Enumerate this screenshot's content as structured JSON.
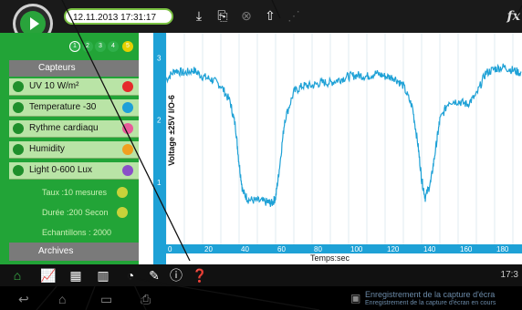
{
  "header": {
    "timestamp": "12.11.2013 17:31:17",
    "channels": [
      "1",
      "2",
      "3",
      "4",
      "5"
    ],
    "fx_label": "fx"
  },
  "sidebar": {
    "sensors_header": "Capteurs",
    "sensors": [
      {
        "label": "UV 10 W/m²",
        "color": "#e52b2b"
      },
      {
        "label": "Temperature -30",
        "color": "#1fa0d8"
      },
      {
        "label": "Rythme cardiaqu",
        "color": "#e85a9a"
      },
      {
        "label": "Humidity",
        "color": "#f0a020"
      },
      {
        "label": "Light 0-600 Lux",
        "color": "#8a4fc8"
      }
    ],
    "info_rows": [
      "Taux :10 mesures",
      "Durée :200 Secon",
      "Echantillons : 2000"
    ],
    "archives_label": "Archives"
  },
  "chart_data": {
    "type": "line",
    "ylabel": "Voltage ±25V I/O-6",
    "xlabel": "Temps:sec",
    "x_ticks": [
      "0",
      "20",
      "40",
      "60",
      "80",
      "100",
      "120",
      "140",
      "160",
      "180"
    ],
    "y_ticks": [
      "3",
      "2",
      "1"
    ],
    "xlim": [
      0,
      195
    ],
    "ylim": [
      0,
      3.4
    ],
    "line_color": "#1ea1d6",
    "series": [
      {
        "x": [
          0,
          5,
          10,
          15,
          20,
          25,
          30,
          35,
          38,
          40,
          42,
          45,
          50,
          55,
          58,
          60,
          62,
          65,
          70,
          75,
          80,
          85,
          90,
          95,
          100,
          105,
          110,
          115,
          120,
          125,
          130,
          135,
          138,
          140,
          142,
          145,
          148,
          150,
          155,
          160,
          165,
          170,
          175,
          180,
          185,
          190,
          195
        ],
        "y": [
          2.65,
          2.8,
          2.75,
          2.8,
          2.7,
          2.65,
          2.55,
          2.3,
          1.9,
          1.3,
          0.85,
          0.72,
          0.7,
          0.68,
          0.66,
          0.75,
          1.2,
          2.0,
          2.45,
          2.55,
          2.55,
          2.6,
          2.6,
          2.65,
          2.7,
          2.72,
          2.7,
          2.75,
          2.7,
          2.68,
          2.55,
          2.2,
          1.6,
          1.05,
          0.75,
          1.0,
          1.6,
          2.0,
          2.3,
          2.3,
          2.25,
          2.4,
          2.75,
          2.82,
          2.85,
          2.8,
          2.75
        ]
      }
    ]
  },
  "bottomnav": {
    "clock": "17:3",
    "notification": "Enregistrement de la capture d'écran en cours",
    "notification_line1": "Enregistrement de la capture d'écra"
  }
}
